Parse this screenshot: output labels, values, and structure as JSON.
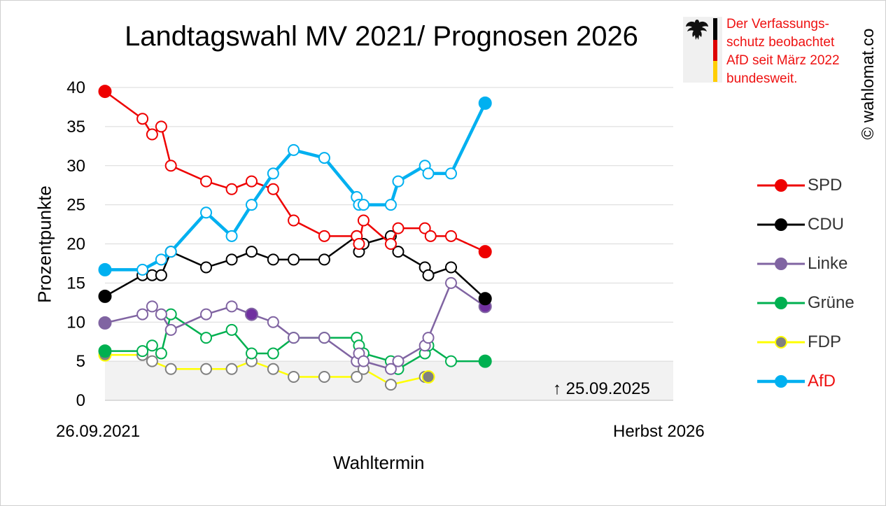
{
  "title": "Landtagswahl MV 2021/ Prognosen 2026",
  "notice": {
    "text": "Der Verfassungs-\nschutz beobachtet\nAfD seit März 2022\nbundesweit.",
    "color": "#ee1111"
  },
  "copyright": "© wahlomat.co",
  "annotation": "↑ 25.09.2025",
  "chart_data": {
    "type": "line",
    "title": "Landtagswahl MV 2021/ Prognosen 2026",
    "xlabel": "Wahltermin",
    "ylabel": "Prozentpunkte",
    "x_start_label": "26.09.2021",
    "x_end_label": "Herbst 2026",
    "ylim": [
      0,
      40
    ],
    "yticks": [
      0,
      5,
      10,
      15,
      20,
      25,
      30,
      35,
      40
    ],
    "grid": "horizontal",
    "legend_position": "right",
    "series": [
      {
        "name": "SPD",
        "color": "#ee0000",
        "label_color": "#333333",
        "x": [
          0,
          6.6,
          8.3,
          9.9,
          11.6,
          17.8,
          22.3,
          25.8,
          29.6,
          33.2,
          38.6,
          44.3,
          44.7,
          45.5,
          50.3,
          51.6,
          56.3,
          57.3,
          60.9,
          66.9
        ],
        "y": [
          39.5,
          36,
          34,
          35,
          30,
          28,
          27,
          28,
          27,
          23,
          21,
          21,
          20,
          23,
          20,
          22,
          22,
          21,
          21,
          19
        ]
      },
      {
        "name": "CDU",
        "color": "#000000",
        "label_color": "#333333",
        "x": [
          0,
          6.6,
          8.3,
          9.9,
          11.6,
          17.8,
          22.3,
          25.8,
          29.6,
          33.2,
          38.6,
          44.3,
          44.7,
          45.5,
          50.3,
          51.6,
          56.3,
          56.9,
          60.9,
          66.9
        ],
        "y": [
          13.3,
          16,
          16,
          16,
          19,
          17,
          18,
          19,
          18,
          18,
          18,
          21,
          19,
          20,
          21,
          19,
          17,
          16,
          17,
          13
        ]
      },
      {
        "name": "Linke",
        "color": "#8064a2",
        "label_color": "#333333",
        "x": [
          0,
          6.6,
          8.3,
          9.9,
          11.6,
          17.8,
          22.3,
          25.8,
          29.6,
          33.2,
          38.6,
          44.3,
          44.7,
          45.5,
          50.3,
          51.6,
          56.3,
          56.9,
          60.9,
          66.9
        ],
        "y": [
          9.9,
          11,
          12,
          11,
          9,
          11,
          12,
          11,
          10,
          8,
          8,
          5,
          6,
          5,
          4,
          5,
          7,
          8,
          15,
          12
        ]
      },
      {
        "name": "Grüne",
        "color": "#00b050",
        "label_color": "#333333",
        "x": [
          0,
          6.6,
          8.3,
          9.9,
          11.6,
          17.8,
          22.3,
          25.8,
          29.6,
          33.2,
          38.6,
          44.3,
          44.7,
          45.5,
          50.3,
          51.6,
          56.3,
          56.9,
          60.9,
          66.9
        ],
        "y": [
          6.3,
          6.3,
          7,
          6,
          11,
          8,
          9,
          6,
          6,
          8,
          8,
          8,
          7,
          6,
          5,
          4,
          6,
          7,
          5,
          5
        ]
      },
      {
        "name": "FDP",
        "color": "#ffff00",
        "label_color": "#333333",
        "x": [
          0,
          6.6,
          8.3,
          11.6,
          17.8,
          22.3,
          25.8,
          29.6,
          33.2,
          38.6,
          44.3,
          45.5,
          50.3,
          56.3,
          56.9
        ],
        "y": [
          5.8,
          5.8,
          5,
          4,
          4,
          4,
          5,
          4,
          3,
          3,
          3,
          4,
          2,
          3,
          3
        ]
      },
      {
        "name": "AfD",
        "color": "#00b0f0",
        "label_color": "#ee1111",
        "x": [
          0,
          6.6,
          9.9,
          11.6,
          17.8,
          22.3,
          25.8,
          29.6,
          33.2,
          38.6,
          44.3,
          44.7,
          45.5,
          50.3,
          51.6,
          56.3,
          56.9,
          60.9,
          66.9
        ],
        "y": [
          16.7,
          16.7,
          18,
          19,
          24,
          21,
          25,
          29,
          32,
          31,
          26,
          25,
          25,
          25,
          28,
          30,
          29,
          29,
          38
        ]
      }
    ]
  }
}
